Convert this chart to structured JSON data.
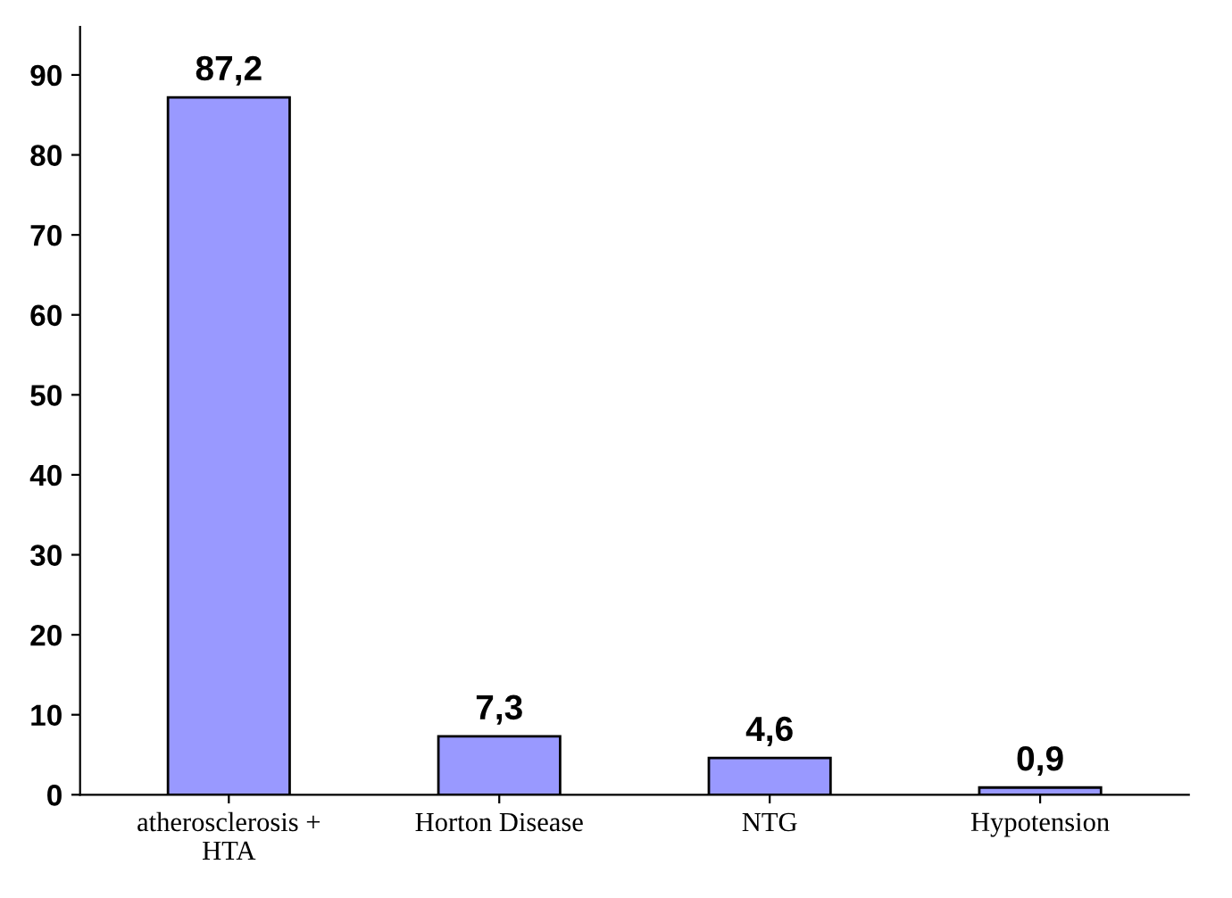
{
  "chart_data": {
    "type": "bar",
    "categories": [
      "atherosclerosis +\nHTA",
      "Horton Disease",
      "NTG",
      "Hypotension"
    ],
    "values": [
      87.2,
      7.3,
      4.6,
      0.9
    ],
    "value_labels": [
      "87,2",
      "7,3",
      "4,6",
      "0,9"
    ],
    "color": "#9999ff",
    "ylim": [
      0,
      96
    ],
    "yticks": [
      0,
      10,
      20,
      30,
      40,
      50,
      60,
      70,
      80,
      90
    ],
    "grid": false,
    "legend": false
  }
}
